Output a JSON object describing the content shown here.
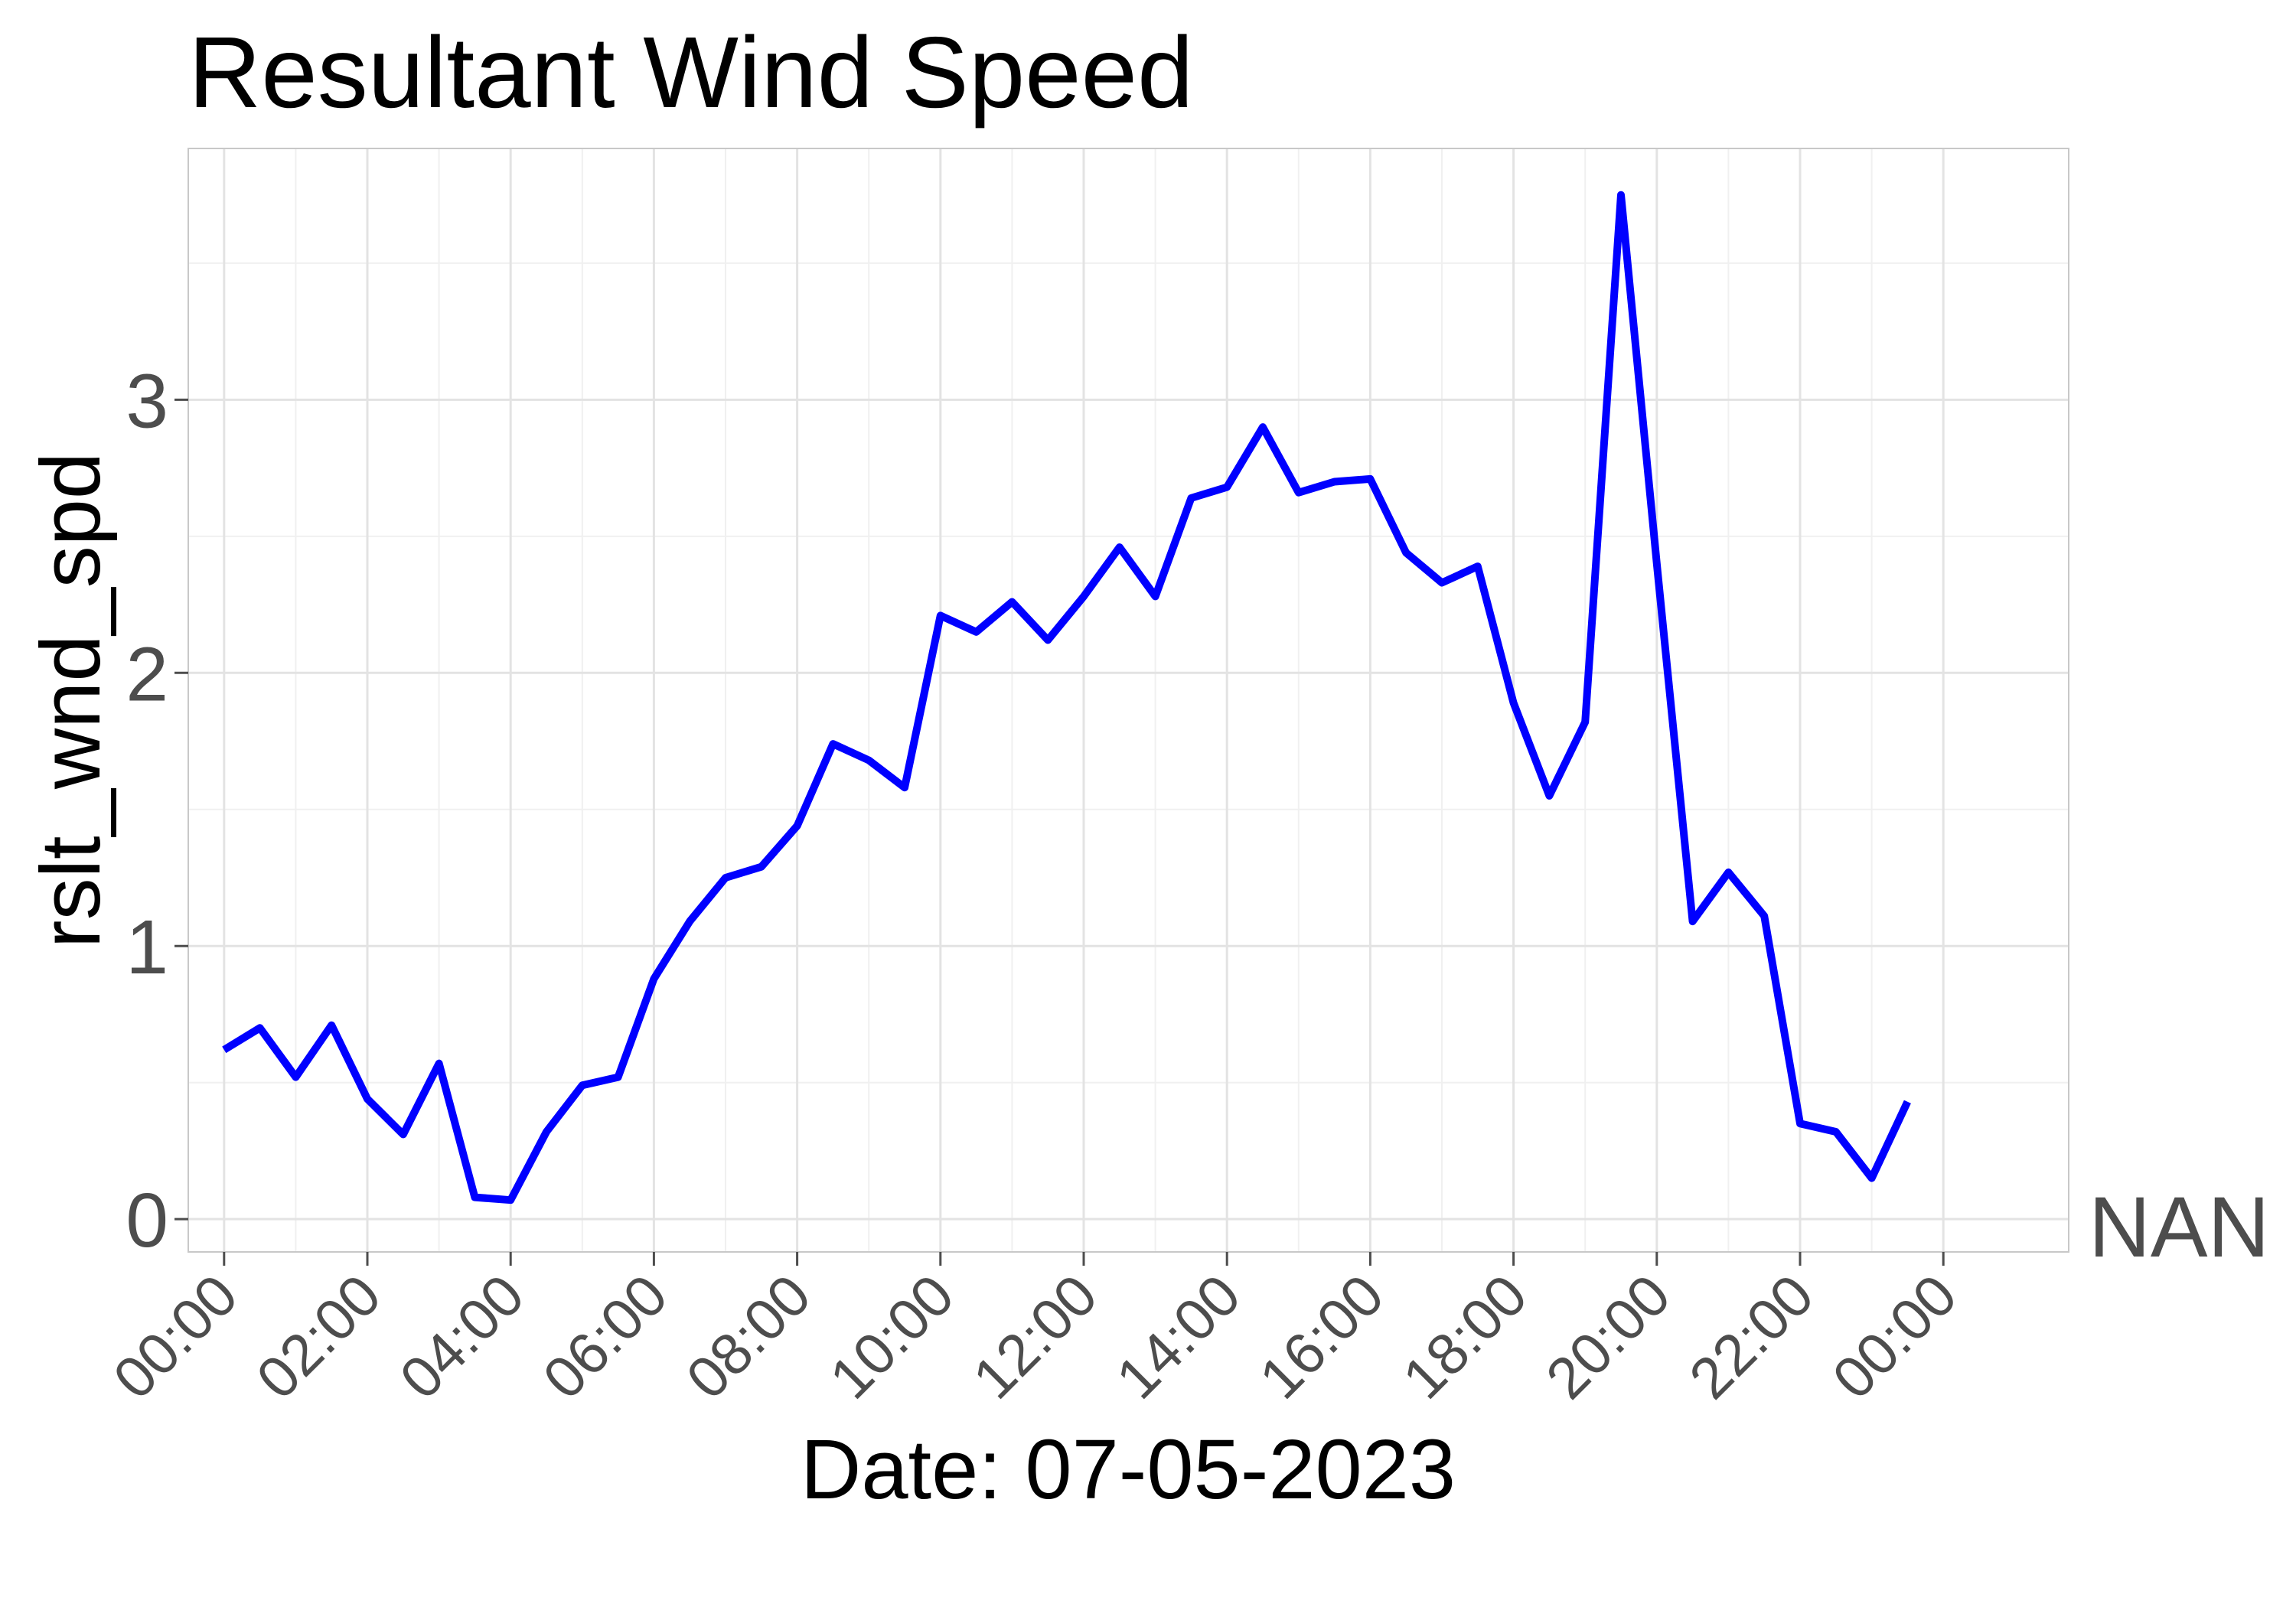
{
  "chart_data": {
    "type": "line",
    "title": "Resultant Wind Speed",
    "xlabel": "Date: 07-05-2023",
    "ylabel": "rslt_wnd_spd",
    "annotation": "NAN",
    "x_ticks": [
      "00:00",
      "02:00",
      "04:00",
      "06:00",
      "08:00",
      "10:00",
      "12:00",
      "14:00",
      "16:00",
      "18:00",
      "20:00",
      "22:00",
      "00:00"
    ],
    "y_ticks": [
      0,
      1,
      2,
      3
    ],
    "xlim_hours": [
      -0.5,
      25.75
    ],
    "ylim": [
      -0.12,
      3.92
    ],
    "grid": true,
    "line_color": "#0000ff",
    "series": [
      {
        "x_hours": [
          0,
          0.5,
          1,
          1.5,
          2,
          2.5,
          3,
          3.5,
          4,
          4.5,
          5,
          5.5,
          6,
          6.5,
          7,
          7.5,
          8,
          8.5,
          9,
          9.5,
          10,
          10.5,
          11,
          11.5,
          12,
          12.5,
          13,
          13.5,
          14,
          14.5,
          15,
          15.5,
          16,
          16.5,
          17,
          17.5,
          18,
          18.5,
          19,
          19.5,
          20,
          20.5,
          21,
          21.5,
          22,
          22.5,
          23,
          23.5
        ],
        "values": [
          0.62,
          0.7,
          0.52,
          0.71,
          0.44,
          0.31,
          0.57,
          0.08,
          0.07,
          0.32,
          0.49,
          0.52,
          0.88,
          1.09,
          1.25,
          1.29,
          1.44,
          1.74,
          1.68,
          1.58,
          2.21,
          2.15,
          2.26,
          2.12,
          2.28,
          2.46,
          2.28,
          2.64,
          2.68,
          2.9,
          2.66,
          2.7,
          2.71,
          2.44,
          2.33,
          2.39,
          1.89,
          1.55,
          1.82,
          3.75,
          2.4,
          1.09,
          1.27,
          1.11,
          0.35,
          0.32,
          0.15,
          0.43
        ]
      }
    ]
  }
}
